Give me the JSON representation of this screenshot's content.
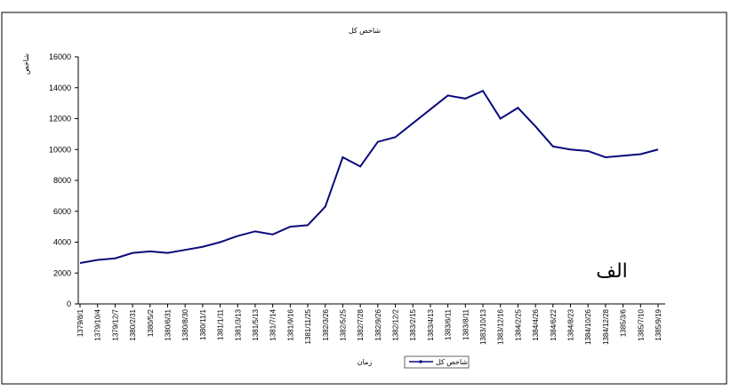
{
  "chart_data": {
    "type": "line",
    "title": "شاخص کل",
    "y_label": "شاخص",
    "x_label": "زمان",
    "annotation": "الف",
    "categories": [
      "1379/8/1",
      "1379/10/4",
      "1379/12/7",
      "1380/2/31",
      "1380/5/2",
      "1380/6/31",
      "1380/8/30",
      "1380/11/1",
      "1381/1/11",
      "1381/3/13",
      "1381/5/13",
      "1381/7/14",
      "1381/9/16",
      "1381/11/25",
      "1382/3/26",
      "1382/5/25",
      "1382/7/28",
      "1382/9/26",
      "1382/12/2",
      "1383/2/15",
      "1383/4/13",
      "1383/6/11",
      "1383/8/11",
      "1383/10/13",
      "1383/12/16",
      "1384/2/25",
      "1384/4/26",
      "1384/6/22",
      "1384/8/23",
      "1384/10/26",
      "1384/12/28",
      "1385/3/6",
      "1385/7/10",
      "1385/9/19"
    ],
    "series": [
      {
        "name": "شاخص کل",
        "color": "#0a0a7a",
        "values": [
          2650,
          2850,
          2950,
          3300,
          3400,
          3300,
          3500,
          3700,
          4000,
          4400,
          4700,
          4500,
          5000,
          5100,
          6300,
          9500,
          8900,
          10500,
          10800,
          11700,
          12600,
          13500,
          13300,
          13800,
          12000,
          12700,
          11500,
          10200,
          10000,
          9900,
          9500,
          9600,
          9700,
          10000
        ]
      }
    ],
    "ylim": [
      0,
      16000
    ],
    "yticks": [
      0,
      2000,
      4000,
      6000,
      8000,
      10000,
      12000,
      14000,
      16000
    ]
  }
}
